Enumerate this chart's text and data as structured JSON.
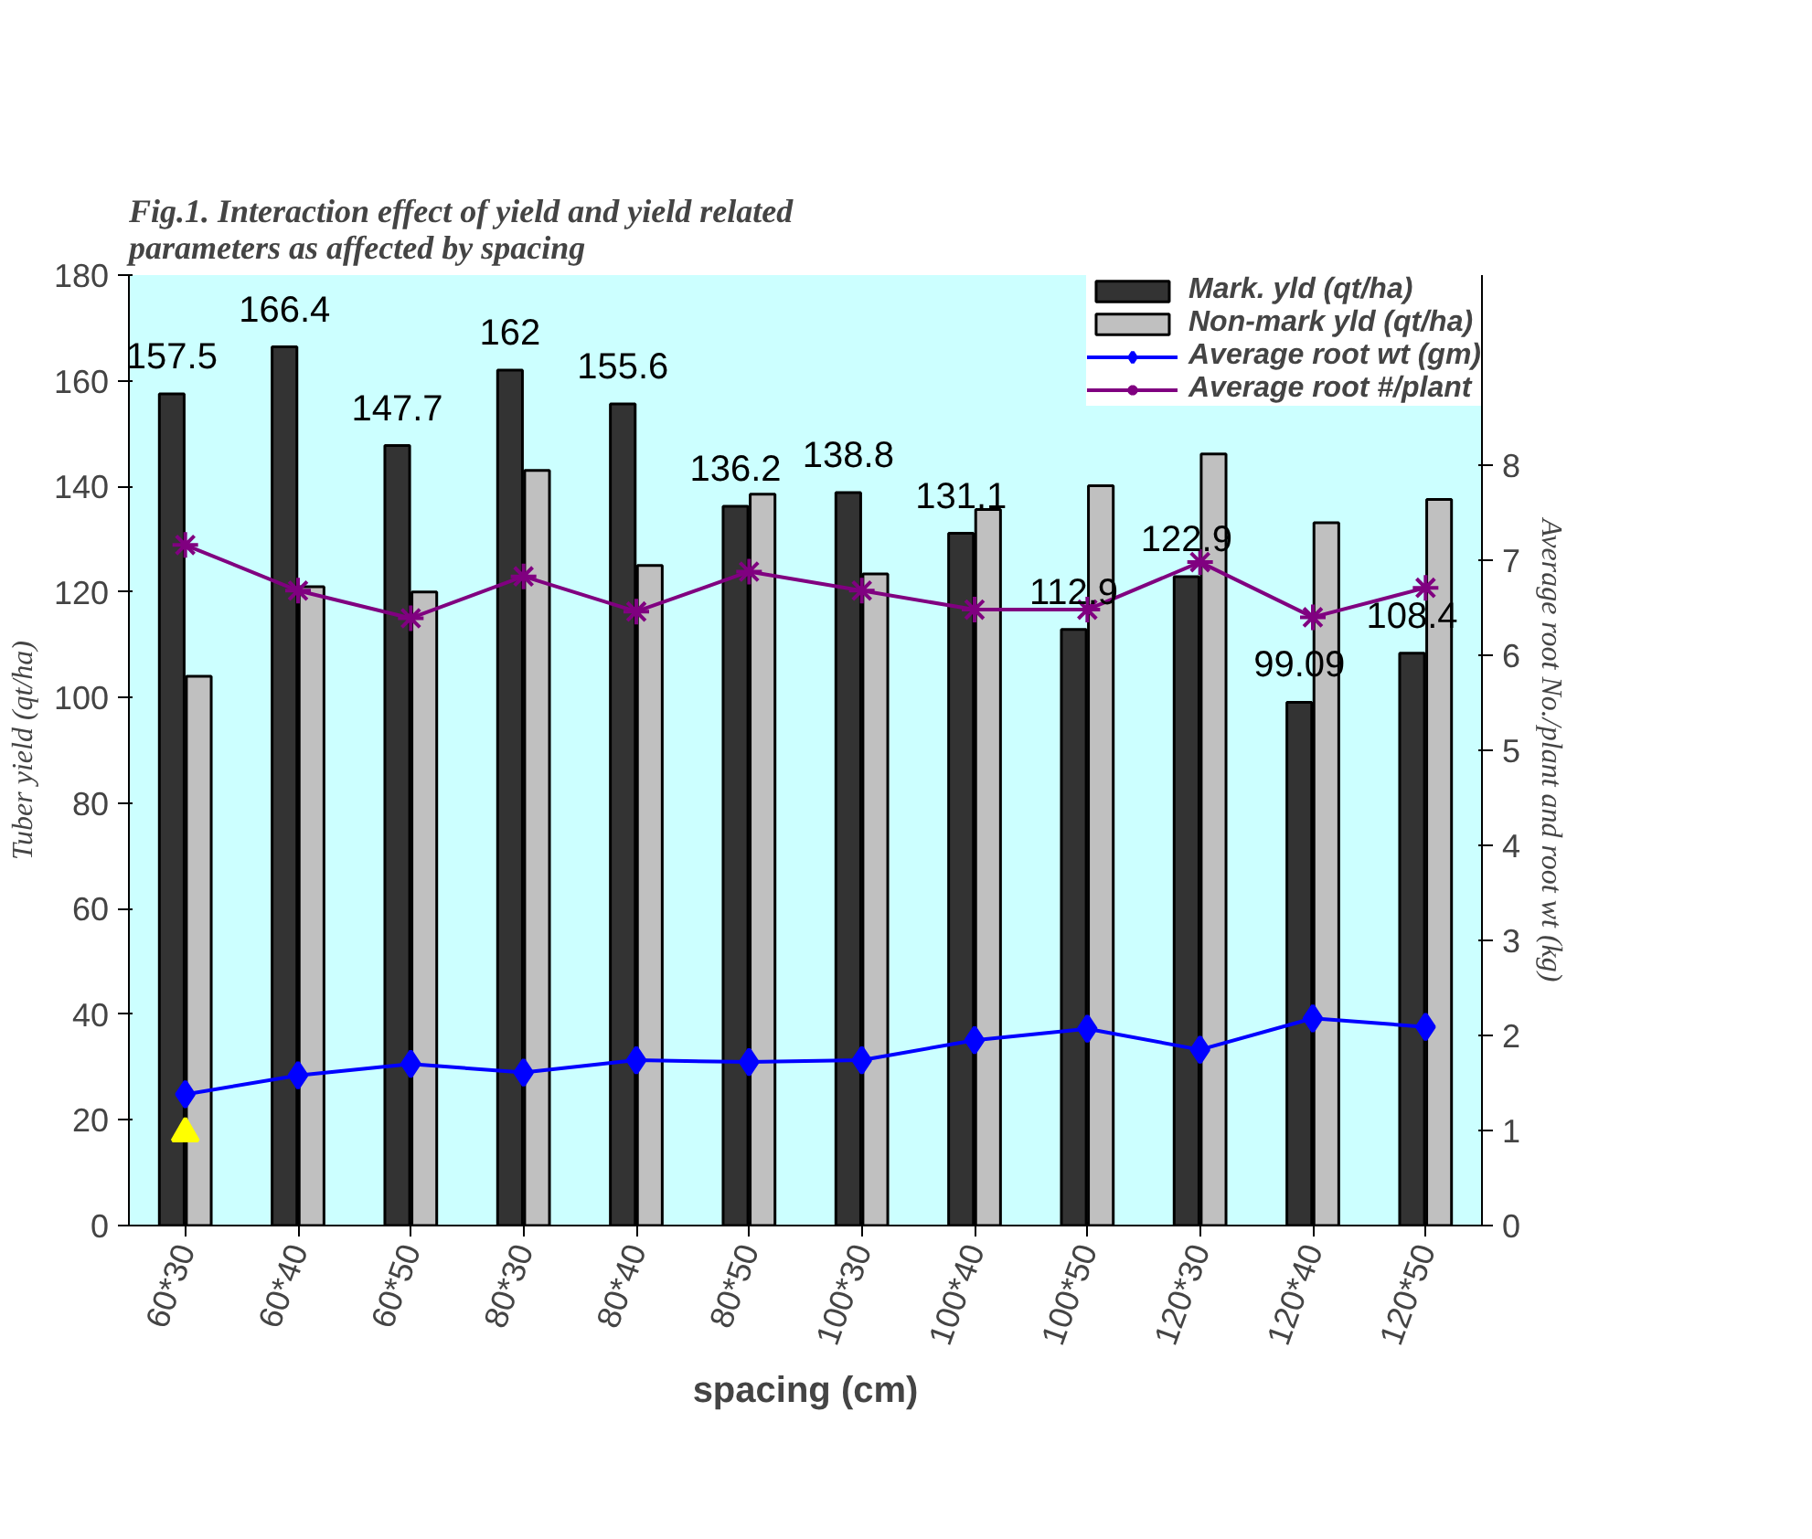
{
  "chart_data": {
    "type": "bar",
    "title": "Fig.1. Interaction effect of yield and yield related\nparameters as affected by spacing",
    "xlabel": "spacing (cm)",
    "ylabel": "Tuber yield (qt/ha)",
    "y2label": "Average root No./plant and root wt (kg)",
    "categories": [
      "60*30",
      "60*40",
      "60*50",
      "80*30",
      "80*40",
      "80*50",
      "100*30",
      "100*40",
      "100*50",
      "120*30",
      "120*40",
      "120*50"
    ],
    "ylim": [
      0,
      180
    ],
    "yticks": [
      0,
      20,
      40,
      60,
      80,
      100,
      120,
      140,
      160,
      180
    ],
    "y2lim": [
      0,
      10
    ],
    "y2ticks": [
      0,
      1,
      2,
      3,
      4,
      5,
      6,
      7,
      8
    ],
    "legend": "top right",
    "grid": false,
    "series": [
      {
        "name": "Mark. yld (qt/ha)",
        "type": "bar",
        "color": "#333333",
        "values": [
          157.5,
          166.4,
          147.7,
          162,
          155.6,
          136.2,
          138.8,
          131.1,
          112.9,
          122.9,
          99.09,
          108.4
        ],
        "value_labels": [
          "157.5",
          "166.4",
          "147.7",
          "162",
          "155.6",
          "136.2",
          "138.8",
          "131.1",
          "112.9",
          "122.9",
          "99.09",
          "108.4"
        ]
      },
      {
        "name": "Non-mark yld (qt/ha)",
        "type": "bar",
        "color": "#c0c0c0",
        "values": [
          104,
          121,
          120,
          143,
          125,
          138.5,
          123.4,
          135.6,
          140.1,
          146.1,
          133.1,
          137.5
        ]
      },
      {
        "name": "Average root wt (gm)",
        "type": "line",
        "color": "#0000ff",
        "marker": "diamond",
        "axis": "y2",
        "values": [
          1.38,
          1.58,
          1.7,
          1.61,
          1.74,
          1.72,
          1.74,
          1.95,
          2.07,
          1.85,
          2.18,
          2.09
        ]
      },
      {
        "name": "Average root #/plant",
        "type": "line",
        "color": "#800080",
        "marker": "cross",
        "axis": "y2",
        "values": [
          7.16,
          6.68,
          6.39,
          6.83,
          6.46,
          6.88,
          6.68,
          6.48,
          6.48,
          6.98,
          6.4,
          6.71
        ]
      },
      {
        "type": "scatter",
        "color": "#ffff00",
        "marker": "triangle",
        "x": [
          "60*30"
        ],
        "values": [
          17.5
        ]
      }
    ]
  }
}
